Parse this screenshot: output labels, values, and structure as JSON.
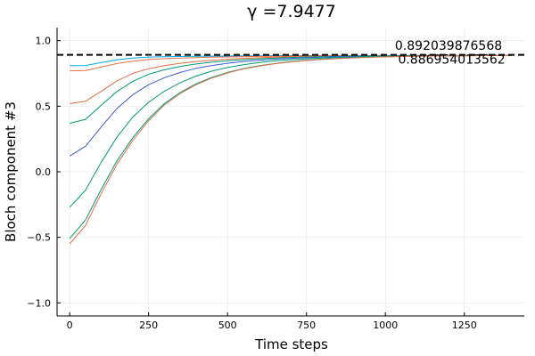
{
  "chart_data": {
    "type": "line",
    "title": "γ =7.9477",
    "xlabel": "Time steps",
    "ylabel": "Bloch component #3",
    "xlim": [
      -40,
      1440
    ],
    "ylim": [
      -1.1,
      1.1
    ],
    "xticks": [
      0,
      250,
      500,
      750,
      1000,
      1250
    ],
    "xtick_labels": [
      "0",
      "250",
      "500",
      "750",
      "1000",
      "1250"
    ],
    "yticks": [
      -1.0,
      -0.5,
      0.0,
      0.5,
      1.0
    ],
    "ytick_labels": [
      "−1.0",
      "−0.5",
      "0.0",
      "0.5",
      "1.0"
    ],
    "grid": true,
    "legend": "none",
    "x": [
      0,
      50,
      100,
      150,
      200,
      250,
      300,
      350,
      400,
      450,
      500,
      550,
      600,
      650,
      700,
      750,
      800,
      850,
      900,
      950,
      1000,
      1050,
      1100,
      1150,
      1200,
      1250,
      1300,
      1350,
      1400
    ],
    "series": [
      {
        "color": "#00a9e0",
        "values": [
          0.81,
          0.811,
          0.833,
          0.855,
          0.868,
          0.875,
          0.877,
          0.879,
          0.881,
          0.882,
          0.883,
          0.884,
          0.885,
          0.886,
          0.886,
          0.886,
          0.886,
          0.887,
          0.887,
          0.887,
          0.887,
          0.887,
          0.887,
          0.887,
          0.887,
          0.887,
          0.887,
          0.887,
          0.887
        ]
      },
      {
        "color": "#e26f46",
        "values": [
          0.77,
          0.772,
          0.799,
          0.826,
          0.844,
          0.856,
          0.863,
          0.867,
          0.871,
          0.874,
          0.876,
          0.878,
          0.88,
          0.881,
          0.882,
          0.883,
          0.884,
          0.885,
          0.885,
          0.886,
          0.886,
          0.886,
          0.887,
          0.887,
          0.887,
          0.887,
          0.887,
          0.887,
          0.887
        ]
      },
      {
        "color": "#e26f46",
        "values": [
          0.52,
          0.538,
          0.614,
          0.694,
          0.751,
          0.786,
          0.81,
          0.828,
          0.841,
          0.851,
          0.859,
          0.865,
          0.87,
          0.874,
          0.877,
          0.879,
          0.881,
          0.883,
          0.884,
          0.885,
          0.885,
          0.886,
          0.886,
          0.886,
          0.887,
          0.887,
          0.887,
          0.887,
          0.887
        ]
      },
      {
        "color": "#009a73",
        "values": [
          0.37,
          0.4,
          0.508,
          0.613,
          0.69,
          0.744,
          0.778,
          0.804,
          0.822,
          0.836,
          0.847,
          0.855,
          0.862,
          0.867,
          0.872,
          0.875,
          0.878,
          0.88,
          0.882,
          0.883,
          0.884,
          0.885,
          0.885,
          0.886,
          0.886,
          0.886,
          0.887,
          0.887,
          0.887
        ]
      },
      {
        "color": "#3b5bd8",
        "values": [
          0.12,
          0.195,
          0.342,
          0.484,
          0.588,
          0.664,
          0.718,
          0.758,
          0.789,
          0.811,
          0.828,
          0.841,
          0.851,
          0.859,
          0.865,
          0.87,
          0.874,
          0.877,
          0.879,
          0.881,
          0.883,
          0.884,
          0.885,
          0.885,
          0.886,
          0.886,
          0.886,
          0.887,
          0.887
        ]
      },
      {
        "color": "#009a73",
        "values": [
          -0.27,
          -0.14,
          0.074,
          0.266,
          0.418,
          0.53,
          0.615,
          0.68,
          0.73,
          0.768,
          0.796,
          0.817,
          0.833,
          0.846,
          0.855,
          0.862,
          0.868,
          0.872,
          0.876,
          0.879,
          0.881,
          0.882,
          0.883,
          0.884,
          0.885,
          0.886,
          0.886,
          0.886,
          0.887
        ]
      },
      {
        "color": "#009a73",
        "values": [
          -0.51,
          -0.368,
          -0.133,
          0.085,
          0.26,
          0.405,
          0.52,
          0.605,
          0.67,
          0.72,
          0.758,
          0.787,
          0.809,
          0.826,
          0.84,
          0.851,
          0.859,
          0.865,
          0.87,
          0.874,
          0.877,
          0.879,
          0.881,
          0.883,
          0.884,
          0.885,
          0.886,
          0.886,
          0.886
        ]
      },
      {
        "color": "#e26f46",
        "values": [
          -0.55,
          -0.41,
          -0.165,
          0.06,
          0.24,
          0.39,
          0.51,
          0.597,
          0.664,
          0.715,
          0.754,
          0.784,
          0.806,
          0.824,
          0.838,
          0.849,
          0.857,
          0.864,
          0.869,
          0.873,
          0.876,
          0.879,
          0.881,
          0.883,
          0.884,
          0.885,
          0.886,
          0.886,
          0.886
        ]
      }
    ],
    "reference_line": {
      "y": 0.892039876568,
      "style": "dashed",
      "color": "#000000"
    },
    "annotations": [
      {
        "text": "0.892039876568",
        "x": 1200,
        "y": 0.93
      },
      {
        "text": "0.886954013562",
        "x": 1210,
        "y": 0.825
      }
    ]
  }
}
